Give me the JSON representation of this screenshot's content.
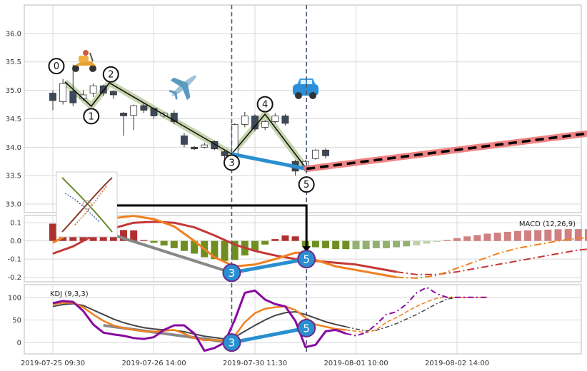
{
  "chart_data": [
    {
      "type": "candlestick",
      "panel": "price",
      "ylim": [
        32.85,
        36.5
      ],
      "yticks": [
        33.0,
        33.5,
        34.0,
        34.5,
        35.0,
        35.5,
        36.0
      ],
      "x_ticks": [
        {
          "i": 0,
          "label": "2019-07-25 09:30"
        },
        {
          "i": 10,
          "label": "2019-07-26 14:00"
        },
        {
          "i": 20,
          "label": "2019-07-30 11:30"
        },
        {
          "i": 30,
          "label": "2019-08-01 10:00"
        },
        {
          "i": 40,
          "label": "2019-08-02 14:00"
        }
      ],
      "candles": [
        {
          "i": 0,
          "o": 34.95,
          "c": 34.82,
          "h": 35.0,
          "l": 34.65
        },
        {
          "i": 1,
          "o": 34.8,
          "c": 35.12,
          "h": 35.2,
          "l": 34.75
        },
        {
          "i": 2,
          "o": 34.98,
          "c": 34.78,
          "h": 35.45,
          "l": 34.72
        },
        {
          "i": 3,
          "o": 34.86,
          "c": 34.92,
          "h": 35.0,
          "l": 34.82
        },
        {
          "i": 4,
          "o": 34.95,
          "c": 35.08,
          "h": 35.12,
          "l": 34.88
        },
        {
          "i": 5,
          "o": 35.08,
          "c": 34.95,
          "h": 35.1,
          "l": 34.9
        },
        {
          "i": 6,
          "o": 34.98,
          "c": 34.92,
          "h": 35.0,
          "l": 34.85
        },
        {
          "i": 7,
          "o": 34.6,
          "c": 34.55,
          "h": 34.62,
          "l": 34.2
        },
        {
          "i": 8,
          "o": 34.56,
          "c": 34.73,
          "h": 34.75,
          "l": 34.3
        },
        {
          "i": 9,
          "o": 34.73,
          "c": 34.65,
          "h": 34.78,
          "l": 34.6
        },
        {
          "i": 10,
          "o": 34.68,
          "c": 34.55,
          "h": 34.7,
          "l": 34.5
        },
        {
          "i": 11,
          "o": 34.55,
          "c": 34.6,
          "h": 34.62,
          "l": 34.52
        },
        {
          "i": 12,
          "o": 34.6,
          "c": 34.45,
          "h": 34.65,
          "l": 34.4
        },
        {
          "i": 13,
          "o": 34.2,
          "c": 34.05,
          "h": 34.25,
          "l": 34.0
        },
        {
          "i": 14,
          "o": 34.0,
          "c": 33.97,
          "h": 34.02,
          "l": 33.95
        },
        {
          "i": 15,
          "o": 34.0,
          "c": 34.04,
          "h": 34.08,
          "l": 33.98
        },
        {
          "i": 16,
          "o": 34.1,
          "c": 33.97,
          "h": 34.12,
          "l": 33.95
        },
        {
          "i": 17,
          "o": 33.92,
          "c": 33.85,
          "h": 33.95,
          "l": 33.78
        },
        {
          "i": 18,
          "o": 33.85,
          "c": 34.4,
          "h": 34.42,
          "l": 33.8
        },
        {
          "i": 19,
          "o": 34.4,
          "c": 34.55,
          "h": 34.62,
          "l": 34.35
        },
        {
          "i": 20,
          "o": 34.55,
          "c": 34.32,
          "h": 34.58,
          "l": 34.28
        },
        {
          "i": 21,
          "o": 34.35,
          "c": 34.45,
          "h": 34.48,
          "l": 34.3
        },
        {
          "i": 22,
          "o": 34.45,
          "c": 34.55,
          "h": 34.6,
          "l": 34.42
        },
        {
          "i": 23,
          "o": 34.55,
          "c": 34.42,
          "h": 34.58,
          "l": 34.38
        },
        {
          "i": 24,
          "o": 33.75,
          "c": 33.58,
          "h": 33.78,
          "l": 33.5
        },
        {
          "i": 25,
          "o": 33.65,
          "c": 33.75,
          "h": 33.78,
          "l": 33.6
        },
        {
          "i": 26,
          "o": 33.8,
          "c": 33.95,
          "h": 33.97,
          "l": 33.78
        },
        {
          "i": 27,
          "o": 33.95,
          "c": 33.85,
          "h": 33.98,
          "l": 33.8
        }
      ],
      "wave_points": [
        {
          "label": "0",
          "i": 1.2,
          "v": 35.15
        },
        {
          "label": "1",
          "i": 3.8,
          "v": 34.72
        },
        {
          "label": "2",
          "i": 5.6,
          "v": 35.13
        },
        {
          "label": "3",
          "i": 17.7,
          "v": 33.88
        },
        {
          "label": "4",
          "i": 21.0,
          "v": 34.58
        },
        {
          "label": "5",
          "i": 25.1,
          "v": 33.62
        }
      ],
      "segment_3_to_5": [
        {
          "i": 17.7,
          "v": 33.88
        },
        {
          "i": 25.1,
          "v": 33.62
        }
      ],
      "forecast_line": [
        {
          "i": 25.1,
          "v": 33.62
        },
        {
          "i": 53.3,
          "v": 34.25
        }
      ],
      "vlines_i": [
        17.7,
        25.1
      ]
    },
    {
      "type": "bar+line",
      "panel": "macd",
      "label": "MACD (12,26,9)",
      "ylim": [
        -0.225,
        0.14
      ],
      "yticks": [
        -0.2,
        -0.1,
        0.0,
        0.1
      ],
      "histogram": [
        0.095,
        0.085,
        0.075,
        0.068,
        0.07,
        0.068,
        0.065,
        0.06,
        0.058,
        0.005,
        -0.01,
        -0.025,
        -0.04,
        -0.055,
        -0.07,
        -0.09,
        -0.1,
        -0.11,
        -0.105,
        -0.08,
        -0.055,
        -0.02,
        0.01,
        0.03,
        0.025,
        -0.03,
        -0.035,
        -0.04,
        -0.045,
        -0.045,
        -0.045,
        -0.045,
        -0.04,
        -0.04,
        -0.035,
        -0.03,
        -0.025,
        -0.015,
        -0.005,
        0.005,
        0.015,
        0.025,
        0.032,
        0.04,
        0.045,
        0.05,
        0.055,
        0.058,
        0.06,
        0.062,
        0.064,
        0.065,
        0.065,
        0.065
      ],
      "dif": {
        "solid_until": 34,
        "points": [
          [
            0,
            -0.01
          ],
          [
            2,
            0.05
          ],
          [
            4,
            0.11
          ],
          [
            6,
            0.125
          ],
          [
            8,
            0.138
          ],
          [
            10,
            0.12
          ],
          [
            12,
            0.08
          ],
          [
            14,
            0.0
          ],
          [
            16,
            -0.09
          ],
          [
            18,
            -0.14
          ],
          [
            20,
            -0.13
          ],
          [
            22,
            -0.1
          ],
          [
            24,
            -0.065
          ],
          [
            25,
            -0.065
          ],
          [
            26,
            -0.105
          ],
          [
            28,
            -0.14
          ],
          [
            30,
            -0.16
          ],
          [
            32,
            -0.18
          ],
          [
            34,
            -0.2
          ],
          [
            36,
            -0.205
          ],
          [
            38,
            -0.19
          ],
          [
            40,
            -0.15
          ],
          [
            42,
            -0.11
          ],
          [
            44,
            -0.07
          ],
          [
            46,
            -0.04
          ],
          [
            48,
            -0.02
          ],
          [
            50,
            0.0
          ],
          [
            52,
            0.015
          ],
          [
            54,
            0.02
          ]
        ]
      },
      "dea": {
        "solid_until": 34,
        "points": [
          [
            0,
            -0.07
          ],
          [
            2,
            -0.03
          ],
          [
            4,
            0.03
          ],
          [
            6,
            0.07
          ],
          [
            8,
            0.1
          ],
          [
            10,
            0.105
          ],
          [
            12,
            0.1
          ],
          [
            14,
            0.075
          ],
          [
            16,
            0.03
          ],
          [
            18,
            -0.02
          ],
          [
            20,
            -0.055
          ],
          [
            22,
            -0.08
          ],
          [
            24,
            -0.1
          ],
          [
            26,
            -0.11
          ],
          [
            28,
            -0.12
          ],
          [
            30,
            -0.13
          ],
          [
            32,
            -0.15
          ],
          [
            34,
            -0.17
          ],
          [
            36,
            -0.185
          ],
          [
            38,
            -0.185
          ],
          [
            40,
            -0.17
          ],
          [
            42,
            -0.15
          ],
          [
            44,
            -0.13
          ],
          [
            46,
            -0.11
          ],
          [
            48,
            -0.09
          ],
          [
            50,
            -0.07
          ],
          [
            52,
            -0.05
          ],
          [
            54,
            -0.04
          ]
        ]
      },
      "grey_trend": [
        [
          5,
          0.05
        ],
        [
          17.7,
          -0.175
        ]
      ],
      "blue_seg": [
        [
          17.7,
          -0.175
        ],
        [
          25.1,
          -0.1
        ]
      ],
      "markers": [
        {
          "label": "3",
          "i": 17.7,
          "v": -0.175
        },
        {
          "label": "5",
          "i": 25.1,
          "v": -0.1
        }
      ]
    },
    {
      "type": "line",
      "panel": "kdj",
      "label": "KDJ (9,3,3)",
      "ylim": [
        -25,
        128
      ],
      "yticks": [
        0,
        50,
        100
      ],
      "k": {
        "solid_until": 29,
        "points": [
          [
            0,
            85
          ],
          [
            1,
            88
          ],
          [
            2,
            88
          ],
          [
            3,
            78
          ],
          [
            4,
            62
          ],
          [
            5,
            48
          ],
          [
            6,
            38
          ],
          [
            7,
            32
          ],
          [
            8,
            28
          ],
          [
            9,
            25
          ],
          [
            10,
            24
          ],
          [
            11,
            26
          ],
          [
            12,
            28
          ],
          [
            13,
            20
          ],
          [
            14,
            10
          ],
          [
            15,
            5
          ],
          [
            16,
            6
          ],
          [
            17,
            4
          ],
          [
            18,
            15
          ],
          [
            19,
            45
          ],
          [
            20,
            65
          ],
          [
            21,
            75
          ],
          [
            22,
            78
          ],
          [
            23,
            80
          ],
          [
            24,
            72
          ],
          [
            25,
            55
          ],
          [
            26,
            40
          ],
          [
            27,
            35
          ],
          [
            28,
            30
          ],
          [
            29,
            28
          ],
          [
            30,
            25
          ],
          [
            31,
            22
          ],
          [
            32,
            28
          ],
          [
            33,
            45
          ],
          [
            34,
            55
          ],
          [
            35,
            68
          ],
          [
            36,
            80
          ],
          [
            37,
            90
          ],
          [
            38,
            98
          ],
          [
            39,
            100
          ],
          [
            40,
            100
          ],
          [
            41,
            100
          ],
          [
            42,
            100
          ],
          [
            43,
            100
          ]
        ]
      },
      "d": {
        "solid_until": 29,
        "points": [
          [
            0,
            80
          ],
          [
            1,
            84
          ],
          [
            2,
            86
          ],
          [
            3,
            82
          ],
          [
            4,
            72
          ],
          [
            5,
            62
          ],
          [
            6,
            52
          ],
          [
            7,
            44
          ],
          [
            8,
            38
          ],
          [
            9,
            33
          ],
          [
            10,
            30
          ],
          [
            11,
            28
          ],
          [
            12,
            27
          ],
          [
            13,
            24
          ],
          [
            14,
            19
          ],
          [
            15,
            14
          ],
          [
            16,
            11
          ],
          [
            17,
            8
          ],
          [
            18,
            12
          ],
          [
            19,
            25
          ],
          [
            20,
            38
          ],
          [
            21,
            50
          ],
          [
            22,
            60
          ],
          [
            23,
            66
          ],
          [
            24,
            68
          ],
          [
            25,
            62
          ],
          [
            26,
            54
          ],
          [
            27,
            46
          ],
          [
            28,
            40
          ],
          [
            29,
            35
          ],
          [
            30,
            30
          ],
          [
            31,
            26
          ],
          [
            32,
            27
          ],
          [
            33,
            34
          ],
          [
            34,
            42
          ],
          [
            35,
            52
          ],
          [
            36,
            62
          ],
          [
            37,
            74
          ],
          [
            38,
            86
          ],
          [
            39,
            96
          ],
          [
            40,
            100
          ],
          [
            41,
            100
          ],
          [
            42,
            100
          ],
          [
            43,
            100
          ]
        ]
      },
      "j": {
        "solid_until": 29,
        "points": [
          [
            0,
            87
          ],
          [
            1,
            92
          ],
          [
            2,
            90
          ],
          [
            3,
            70
          ],
          [
            4,
            40
          ],
          [
            5,
            22
          ],
          [
            6,
            18
          ],
          [
            7,
            15
          ],
          [
            8,
            10
          ],
          [
            9,
            8
          ],
          [
            10,
            12
          ],
          [
            11,
            28
          ],
          [
            12,
            38
          ],
          [
            13,
            38
          ],
          [
            14,
            20
          ],
          [
            15,
            -18
          ],
          [
            16,
            -12
          ],
          [
            17,
            0
          ],
          [
            18,
            50
          ],
          [
            19,
            110
          ],
          [
            20,
            115
          ],
          [
            21,
            95
          ],
          [
            22,
            85
          ],
          [
            23,
            80
          ],
          [
            24,
            48
          ],
          [
            25,
            -10
          ],
          [
            26,
            -5
          ],
          [
            27,
            25
          ],
          [
            28,
            28
          ],
          [
            29,
            20
          ],
          [
            30,
            15
          ],
          [
            31,
            22
          ],
          [
            32,
            40
          ],
          [
            33,
            62
          ],
          [
            34,
            68
          ],
          [
            35,
            85
          ],
          [
            36,
            110
          ],
          [
            37,
            122
          ],
          [
            38,
            108
          ],
          [
            39,
            100
          ],
          [
            40,
            100
          ],
          [
            41,
            100
          ],
          [
            42,
            100
          ],
          [
            43,
            100
          ]
        ]
      },
      "grey_trend": [
        [
          5,
          38
        ],
        [
          17.7,
          0
        ]
      ],
      "blue_seg": [
        [
          17.7,
          0
        ],
        [
          25.1,
          32
        ]
      ],
      "markers": [
        {
          "label": "3",
          "i": 17.7,
          "v": 0
        },
        {
          "label": "5",
          "i": 25.1,
          "v": 32
        }
      ]
    }
  ]
}
